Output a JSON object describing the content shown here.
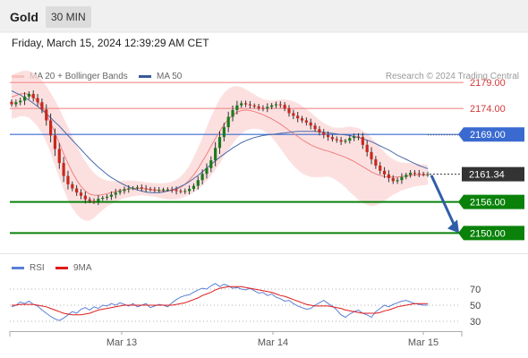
{
  "header": {
    "instrument": "Gold",
    "timeframe": "30 MIN"
  },
  "timestamp": "Friday, March 15, 2024 12:39:29 AM CET",
  "legend": [
    {
      "label": "MA 20 + Bollinger Bands",
      "color": "#f08080"
    },
    {
      "label": "MA 50",
      "color": "#3a5a98"
    }
  ],
  "credit": "Research © 2024 Trading Central",
  "colors": {
    "bull": "#1b7a1b",
    "bear": "#c8281e",
    "support": "#0a820a",
    "pivot": "#3a6ad0",
    "resistance": "#f08a8a",
    "band": "#fbd6d6",
    "arrow": "#2f5ea8"
  },
  "chart_data": [
    {
      "type": "candlestick",
      "ylim": [
        2148,
        2184
      ],
      "x_ticks": [
        "Mar 13",
        "Mar 14",
        "Mar 15"
      ],
      "levels": [
        {
          "label": "2179.00",
          "value": 2179.0,
          "kind": "resistance"
        },
        {
          "label": "2174.00",
          "value": 2174.0,
          "kind": "resistance"
        },
        {
          "label": "2169.00",
          "value": 2169.0,
          "kind": "pivot"
        },
        {
          "label": "2161.34",
          "value": 2161.34,
          "kind": "last"
        },
        {
          "label": "2156.00",
          "value": 2156.0,
          "kind": "support"
        },
        {
          "label": "2150.00",
          "value": 2150.0,
          "kind": "support"
        }
      ],
      "arrow": {
        "from_value": 2161.3,
        "to_value": 2150.0,
        "direction": "down"
      },
      "close": [
        2174.8,
        2175.2,
        2175.5,
        2176.3,
        2176.8,
        2176.0,
        2175.2,
        2173.8,
        2171.7,
        2168.8,
        2166.2,
        2163.5,
        2161.0,
        2159.4,
        2158.6,
        2157.8,
        2157.2,
        2156.5,
        2156.2,
        2156.1,
        2156.6,
        2156.8,
        2157.0,
        2157.4,
        2157.8,
        2158.1,
        2158.4,
        2158.6,
        2158.7,
        2158.8,
        2158.6,
        2158.5,
        2158.4,
        2158.3,
        2158.3,
        2158.4,
        2158.4,
        2158.3,
        2158.1,
        2158.0,
        2158.1,
        2158.5,
        2159.1,
        2160.2,
        2161.4,
        2162.5,
        2164.0,
        2166.4,
        2168.5,
        2170.4,
        2172.4,
        2173.7,
        2174.6,
        2175.0,
        2174.8,
        2174.6,
        2174.4,
        2174.1,
        2174.0,
        2174.3,
        2174.6,
        2174.8,
        2174.7,
        2174.0,
        2173.1,
        2172.6,
        2172.1,
        2171.7,
        2171.3,
        2170.7,
        2170.0,
        2169.4,
        2168.9,
        2168.5,
        2168.1,
        2167.9,
        2167.6,
        2167.8,
        2168.3,
        2168.6,
        2168.5,
        2167.0,
        2165.6,
        2164.2,
        2163.0,
        2162.0,
        2161.3,
        2160.6,
        2160.0,
        2160.2,
        2160.8,
        2161.2,
        2161.6,
        2161.5,
        2161.4,
        2161.3,
        2161.34
      ],
      "ma20": [
        2176.2,
        2176.5,
        2176.8,
        2176.9,
        2176.7,
        2176.2,
        2175.4,
        2174.3,
        2172.9,
        2171.2,
        2169.3,
        2167.3,
        2165.3,
        2163.4,
        2161.7,
        2160.2,
        2159.0,
        2158.1,
        2157.5,
        2157.3,
        2157.3,
        2157.4,
        2157.6,
        2157.8,
        2158.0,
        2158.2,
        2158.4,
        2158.5,
        2158.6,
        2158.6,
        2158.6,
        2158.5,
        2158.4,
        2158.3,
        2158.2,
        2158.1,
        2158.1,
        2158.2,
        2158.4,
        2158.8,
        2159.4,
        2160.2,
        2161.2,
        2162.4,
        2163.8,
        2165.2,
        2166.7,
        2168.2,
        2169.6,
        2170.9,
        2171.9,
        2172.7,
        2173.3,
        2173.6,
        2173.7,
        2173.6,
        2173.4,
        2173.1,
        2172.8,
        2172.4,
        2172.0,
        2171.5,
        2171.0,
        2170.4,
        2169.8,
        2169.2,
        2168.6,
        2168.0,
        2167.5,
        2167.0,
        2166.6,
        2166.3,
        2166.0,
        2165.8,
        2165.5,
        2165.2,
        2164.9,
        2164.6,
        2164.2,
        2163.8,
        2163.3,
        2162.8,
        2162.3,
        2161.8,
        2161.4,
        2161.1,
        2160.9,
        2160.8,
        2160.8,
        2160.8,
        2160.9,
        2161.0,
        2161.1,
        2161.2,
        2161.2,
        2161.2,
        2161.2
      ],
      "ma50": [
        2177.4,
        2177.0,
        2176.6,
        2176.1,
        2175.6,
        2175.0,
        2174.4,
        2173.7,
        2173.0,
        2172.2,
        2171.4,
        2170.6,
        2169.7,
        2168.8,
        2167.9,
        2167.0,
        2166.1,
        2165.2,
        2164.3,
        2163.5,
        2162.7,
        2162.0,
        2161.3,
        2160.7,
        2160.2,
        2159.7,
        2159.3,
        2158.9,
        2158.6,
        2158.3,
        2158.1,
        2157.9,
        2157.8,
        2157.8,
        2157.8,
        2157.9,
        2158.1,
        2158.3,
        2158.6,
        2159.0,
        2159.4,
        2159.9,
        2160.5,
        2161.1,
        2161.8,
        2162.5,
        2163.2,
        2163.9,
        2164.6,
        2165.2,
        2165.8,
        2166.4,
        2166.9,
        2167.4,
        2167.8,
        2168.1,
        2168.4,
        2168.6,
        2168.8,
        2168.9,
        2169.0,
        2169.1,
        2169.2,
        2169.3,
        2169.4,
        2169.5,
        2169.6,
        2169.6,
        2169.6,
        2169.6,
        2169.6,
        2169.5,
        2169.4,
        2169.3,
        2169.2,
        2169.1,
        2169.0,
        2168.9,
        2168.8,
        2168.6,
        2168.4,
        2168.2,
        2167.9,
        2167.6,
        2167.2,
        2166.8,
        2166.4,
        2166.0,
        2165.5,
        2165.0,
        2164.6,
        2164.2,
        2163.8,
        2163.4,
        2163.0,
        2162.7,
        2162.4
      ],
      "band_upper": [
        2180.4,
        2180.8,
        2181.1,
        2181.3,
        2181.2,
        2180.9,
        2180.3,
        2179.4,
        2178.3,
        2177.0,
        2175.6,
        2174.0,
        2172.2,
        2170.4,
        2168.6,
        2166.8,
        2165.2,
        2163.8,
        2162.6,
        2161.6,
        2160.9,
        2160.4,
        2160.1,
        2160.0,
        2160.0,
        2160.0,
        2160.1,
        2160.1,
        2160.1,
        2160.0,
        2159.9,
        2159.8,
        2159.7,
        2159.6,
        2159.6,
        2159.6,
        2159.7,
        2159.9,
        2160.3,
        2160.9,
        2161.8,
        2163.0,
        2164.6,
        2166.4,
        2168.4,
        2170.4,
        2172.4,
        2174.2,
        2175.8,
        2177.0,
        2177.8,
        2178.2,
        2178.3,
        2178.1,
        2177.7,
        2177.2,
        2176.7,
        2176.2,
        2175.8,
        2175.6,
        2175.5,
        2175.6,
        2175.7,
        2175.7,
        2175.6,
        2175.4,
        2175.0,
        2174.5,
        2173.9,
        2173.2,
        2172.5,
        2171.8,
        2171.2,
        2170.7,
        2170.4,
        2170.3,
        2170.3,
        2170.4,
        2170.5,
        2170.4,
        2170.2,
        2169.8,
        2169.2,
        2168.4,
        2167.5,
        2166.5,
        2165.6,
        2164.8,
        2164.2,
        2163.8,
        2163.6,
        2163.5,
        2163.5,
        2163.4,
        2163.3,
        2163.2,
        2163.1
      ],
      "band_lower": [
        2172.0,
        2172.2,
        2172.5,
        2172.5,
        2172.2,
        2171.5,
        2170.5,
        2169.2,
        2167.5,
        2165.4,
        2163.0,
        2160.6,
        2158.4,
        2156.4,
        2154.8,
        2153.6,
        2152.8,
        2152.4,
        2152.4,
        2152.9,
        2153.7,
        2154.4,
        2155.1,
        2155.6,
        2156.0,
        2156.4,
        2156.7,
        2156.9,
        2157.1,
        2157.2,
        2157.3,
        2157.2,
        2157.1,
        2157.0,
        2156.8,
        2156.6,
        2156.5,
        2156.5,
        2156.5,
        2156.7,
        2157.0,
        2157.4,
        2157.8,
        2158.4,
        2159.2,
        2160.0,
        2161.0,
        2162.2,
        2163.4,
        2164.8,
        2166.0,
        2167.2,
        2168.3,
        2169.1,
        2169.7,
        2170.0,
        2170.1,
        2170.0,
        2169.8,
        2169.2,
        2168.5,
        2167.4,
        2166.3,
        2165.1,
        2164.0,
        2163.0,
        2162.2,
        2161.5,
        2161.1,
        2160.8,
        2160.7,
        2160.8,
        2160.8,
        2160.9,
        2160.6,
        2160.1,
        2159.5,
        2158.8,
        2157.9,
        2157.2,
        2156.4,
        2155.8,
        2155.4,
        2155.2,
        2155.3,
        2155.7,
        2156.2,
        2156.8,
        2157.4,
        2157.8,
        2158.2,
        2158.5,
        2158.7,
        2159.0,
        2159.1,
        2159.2,
        2159.3
      ]
    },
    {
      "type": "line",
      "series": [
        {
          "name": "RSI",
          "color": "#5a7fd6",
          "values": [
            48,
            50,
            54,
            52,
            55,
            51,
            49,
            44,
            40,
            36,
            33,
            31,
            34,
            38,
            42,
            40,
            45,
            47,
            44,
            48,
            46,
            50,
            49,
            52,
            50,
            53,
            51,
            49,
            52,
            48,
            50,
            52,
            47,
            49,
            51,
            50,
            48,
            53,
            57,
            60,
            62,
            63,
            66,
            69,
            71,
            70,
            74,
            77,
            73,
            76,
            74,
            71,
            72,
            70,
            69,
            71,
            68,
            65,
            66,
            62,
            64,
            60,
            58,
            55,
            56,
            52,
            49,
            47,
            45,
            46,
            50,
            53,
            56,
            52,
            49,
            44,
            38,
            35,
            39,
            42,
            44,
            40,
            38,
            35,
            42,
            46,
            50,
            48,
            51,
            53,
            55,
            56,
            54,
            52,
            51,
            50,
            50
          ]
        },
        {
          "name": "9MA",
          "color": "#e01b1b",
          "values": [
            50,
            50,
            51,
            51,
            51,
            51,
            50,
            49,
            48,
            46,
            44,
            42,
            40,
            39,
            38,
            38,
            38,
            39,
            40,
            42,
            44,
            45,
            46,
            47,
            48,
            49,
            50,
            50,
            50,
            50,
            50,
            50,
            50,
            50,
            50,
            50,
            50,
            50,
            51,
            52,
            53,
            55,
            57,
            59,
            62,
            64,
            66,
            69,
            71,
            72,
            73,
            73,
            73,
            73,
            72,
            71,
            70,
            69,
            68,
            67,
            66,
            64,
            62,
            61,
            59,
            57,
            55,
            53,
            51,
            50,
            49,
            49,
            49,
            49,
            48,
            47,
            46,
            44,
            43,
            42,
            41,
            40,
            40,
            40,
            40,
            41,
            43,
            44,
            46,
            48,
            49,
            50,
            51,
            52,
            52,
            52,
            52
          ]
        }
      ],
      "ylim": [
        20,
        80
      ],
      "y_ticks": [
        "70",
        "50",
        "30"
      ],
      "x_ticks": [
        "Mar 13",
        "Mar 14",
        "Mar 15"
      ]
    }
  ]
}
